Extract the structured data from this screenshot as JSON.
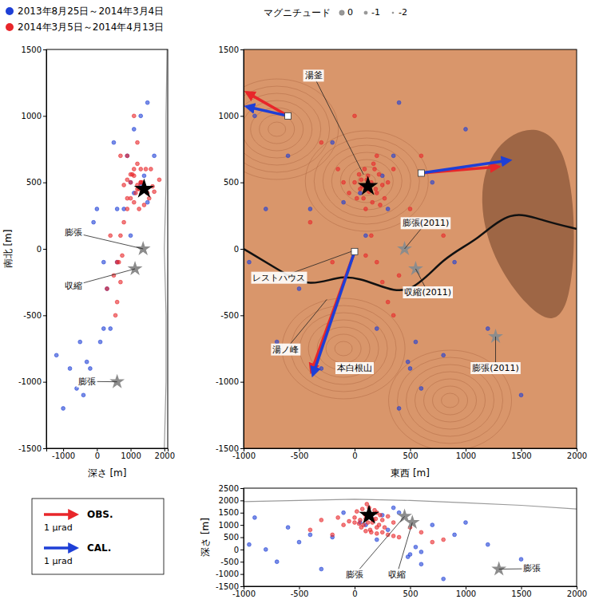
{
  "chart_data": [
    {
      "type": "scatter",
      "legend": "top-left",
      "x_label": "深さ [m]",
      "y_label": "南北 [m]",
      "xlim": [
        -1500,
        2100
      ],
      "xticks": [
        -1000,
        0,
        1000,
        2000
      ],
      "ylim": [
        -1500,
        1500
      ],
      "yticks": [
        -1500,
        -1000,
        -500,
        0,
        500,
        1000,
        1500
      ],
      "series": [
        {
          "name": "2013年8月25日～2014年3月4日",
          "color": "#1e3fd6",
          "marker": "circle",
          "x": [
            1300,
            900,
            600,
            1500,
            1000,
            1300,
            1100,
            1400,
            1500,
            800,
            100,
            -200,
            -600,
            -300,
            600,
            200,
            -500,
            -800,
            400,
            -1000,
            0,
            1100,
            500,
            -100,
            1000,
            300,
            -1200,
            200,
            -400,
            1700
          ],
          "values": [
            1000,
            700,
            300,
            1100,
            500,
            480,
            420,
            550,
            350,
            300,
            -700,
            -900,
            -1050,
            -850,
            -100,
            -600,
            -700,
            -900,
            -600,
            -1200,
            300,
            900,
            800,
            200,
            100,
            -300,
            -800,
            -100,
            -1100,
            700
          ]
        },
        {
          "name": "2014年3月5日～2014年4月13日",
          "color": "#e8262a",
          "marker": "circle",
          "x": [
            1400,
            1300,
            1200,
            1500,
            1100,
            1000,
            1600,
            1300,
            1200,
            1700,
            900,
            1100,
            1000,
            1450,
            1150,
            1350,
            800,
            1550,
            1250,
            1850,
            1000,
            900,
            1650,
            1200,
            1050,
            1400,
            1250,
            1100,
            1300,
            900,
            700,
            650,
            700,
            600,
            750,
            550,
            1200,
            900,
            800,
            700,
            500,
            600,
            300,
            1100,
            400
          ],
          "values": [
            470,
            500,
            450,
            420,
            550,
            380,
            600,
            500,
            480,
            430,
            520,
            350,
            560,
            600,
            420,
            500,
            480,
            380,
            450,
            520,
            500,
            380,
            470,
            640,
            560,
            330,
            300,
            600,
            600,
            700,
            100,
            -100,
            -250,
            -400,
            -50,
            -500,
            800,
            300,
            200,
            700,
            -200,
            -100,
            -300,
            1000,
            100
          ]
        },
        {
          "type": "line",
          "color": "#9a9a9a",
          "x": [
            2080,
            2050,
            2050,
            2000,
            2050,
            2050,
            2000
          ],
          "values": [
            1500,
            1000,
            500,
            0,
            -500,
            -1000,
            -1500
          ]
        },
        {
          "marker": "star",
          "colors": [
            "#000000",
            "#8c8c8c",
            "#8c8c8c",
            "#8c8c8c"
          ],
          "x": [
            1400,
            1370,
            1130,
            600
          ],
          "values": [
            450,
            0,
            -150,
            -1000
          ]
        }
      ],
      "annotations": [
        {
          "text": "膨張",
          "x": -700,
          "y": 120,
          "to": [
            1370,
            0
          ]
        },
        {
          "text": "収縮",
          "x": -700,
          "y": -280,
          "to": [
            1130,
            -150
          ]
        },
        {
          "text": "膨張",
          "x": -300,
          "y": -1000,
          "to": [
            600,
            -1000
          ]
        }
      ]
    },
    {
      "type": "scatter",
      "x_label": "東西 [m]",
      "xlim": [
        -1000,
        2000
      ],
      "xticks": [
        -1000,
        -500,
        0,
        500,
        1000,
        1500,
        2000
      ],
      "ylim": [
        -1500,
        1500
      ],
      "yticks": [
        -1500,
        -1000,
        -500,
        0,
        500,
        1000,
        1500
      ],
      "series": [
        {
          "color": "#1e3fd6",
          "marker": "circle",
          "x": [
            -900,
            -600,
            -400,
            400,
            700,
            150,
            50,
            250,
            -100,
            300,
            550,
            500,
            600,
            480,
            900,
            1200,
            -700,
            -300,
            200,
            400,
            -800,
            1000,
            -200,
            600,
            100,
            -500,
            800,
            -950,
            1500,
            350
          ],
          "values": [
            1000,
            700,
            300,
            1100,
            500,
            480,
            420,
            550,
            350,
            300,
            -700,
            -900,
            -1050,
            -850,
            -100,
            -600,
            -700,
            -900,
            -600,
            -1200,
            300,
            900,
            800,
            200,
            100,
            -300,
            -800,
            -100,
            -1100,
            700
          ]
        },
        {
          "color": "#e8262a",
          "marker": "circle",
          "x": [
            100,
            150,
            50,
            200,
            120,
            80,
            180,
            0,
            250,
            130,
            60,
            160,
            220,
            90,
            -50,
            300,
            140,
            20,
            190,
            110,
            -100,
            270,
            70,
            170,
            40,
            230,
            100,
            350,
            -150,
            200,
            150,
            200,
            250,
            300,
            100,
            350,
            -300,
            500,
            -400,
            600,
            400,
            -200,
            700,
            0,
            800
          ],
          "values": [
            470,
            500,
            450,
            420,
            550,
            380,
            600,
            500,
            480,
            430,
            520,
            350,
            560,
            600,
            420,
            500,
            480,
            380,
            450,
            520,
            500,
            380,
            470,
            640,
            560,
            330,
            300,
            600,
            600,
            700,
            100,
            -100,
            -250,
            -400,
            -50,
            -500,
            800,
            300,
            200,
            700,
            -200,
            -100,
            -300,
            1000,
            100
          ]
        },
        {
          "marker": "star",
          "colors": [
            "#000000",
            "#8c8c8c",
            "#8c8c8c",
            "#8c8c8c"
          ],
          "x": [
            120,
            450,
            550,
            1270
          ],
          "values": [
            470,
            0,
            -150,
            -660
          ]
        }
      ],
      "vectors": [
        {
          "x": -600,
          "y": 1000,
          "obs": [
            -1.28,
            0.73
          ],
          "cal": [
            -1.28,
            0.29
          ]
        },
        {
          "x": 600,
          "y": 570,
          "obs": [
            2.4,
            0.2
          ],
          "cal": [
            2.75,
            0.4
          ]
        },
        {
          "x": 0,
          "y": -20,
          "obs": [
            -1.35,
            -3.75
          ],
          "cal": [
            -1.3,
            -3.85
          ]
        }
      ],
      "annotations": [
        {
          "text": "湯釜",
          "x": -370,
          "y": 1300,
          "to": [
            80,
            560
          ]
        },
        {
          "text": "レストハウス",
          "x": -680,
          "y": -220,
          "to": [
            -30,
            -20
          ]
        },
        {
          "text": "湯ノ峰",
          "x": -620,
          "y": -760,
          "to": [
            -250,
            -380
          ]
        },
        {
          "text": "本白根山",
          "x": 0,
          "y": -900
        },
        {
          "text": "膨張(2011)",
          "x": 640,
          "y": 190,
          "to": [
            450,
            0
          ]
        },
        {
          "text": "収縮(2011)",
          "x": 660,
          "y": -330,
          "to": [
            550,
            -150
          ]
        },
        {
          "text": "膨張(2011)",
          "x": 1270,
          "y": -900,
          "to": [
            1270,
            -660
          ]
        }
      ]
    },
    {
      "type": "scatter",
      "y_label": "深さ [m]",
      "xlim": [
        -1000,
        2000
      ],
      "xticks": [
        -1000,
        -500,
        0,
        500,
        1000,
        1500,
        2000
      ],
      "ylim": [
        -1500,
        2500
      ],
      "yticks": [
        -1500,
        -1000,
        -500,
        0,
        500,
        1000,
        1500,
        2000,
        2500
      ],
      "series": [
        {
          "color": "#1e3fd6",
          "marker": "circle",
          "x": [
            -900,
            -600,
            -400,
            400,
            700,
            150,
            50,
            250,
            -100,
            300,
            550,
            500,
            600,
            480,
            900,
            1200,
            -700,
            -300,
            200,
            400,
            -800,
            1000,
            -200,
            600,
            100,
            -500,
            800,
            -950,
            1500,
            350
          ],
          "values": [
            1300,
            900,
            600,
            1500,
            1000,
            1300,
            1100,
            1400,
            1500,
            800,
            100,
            -200,
            -600,
            -300,
            600,
            200,
            -500,
            -800,
            400,
            -1000,
            0,
            1100,
            500,
            -100,
            1000,
            300,
            -1200,
            200,
            -400,
            1700
          ]
        },
        {
          "color": "#e8262a",
          "marker": "circle",
          "x": [
            100,
            150,
            50,
            200,
            120,
            80,
            180,
            0,
            250,
            130,
            60,
            160,
            220,
            90,
            -50,
            300,
            140,
            20,
            190,
            110,
            -100,
            270,
            70,
            170,
            40,
            230,
            100,
            350,
            -150,
            200,
            150,
            200,
            250,
            300,
            100,
            350,
            -300,
            500,
            -400,
            600,
            400,
            -200,
            700,
            0,
            800
          ],
          "values": [
            1400,
            1300,
            1200,
            1500,
            1100,
            1000,
            1600,
            1300,
            1200,
            1700,
            900,
            1100,
            1000,
            1450,
            1150,
            1350,
            800,
            1550,
            1250,
            1850,
            1000,
            900,
            1650,
            1200,
            1050,
            1400,
            1250,
            1100,
            1300,
            900,
            700,
            650,
            700,
            600,
            750,
            550,
            1200,
            900,
            800,
            700,
            500,
            600,
            300,
            1100,
            400
          ]
        },
        {
          "type": "line",
          "color": "#9a9a9a",
          "x": [
            -1000,
            -500,
            0,
            500,
            1000,
            1500,
            2000
          ],
          "values": [
            1950,
            2000,
            2050,
            2000,
            1900,
            1800,
            1650
          ]
        },
        {
          "marker": "star",
          "colors": [
            "#000000",
            "#8c8c8c",
            "#8c8c8c",
            "#8c8c8c"
          ],
          "x": [
            130,
            450,
            520,
            1300
          ],
          "values": [
            1400,
            1350,
            1100,
            -800
          ]
        }
      ],
      "annotations": [
        {
          "text": "膨張",
          "x": 0,
          "y": -1050,
          "to": [
            450,
            1350
          ]
        },
        {
          "text": "収縮",
          "x": 380,
          "y": -1050,
          "to": [
            520,
            1100
          ]
        },
        {
          "text": "膨張",
          "x": 1600,
          "y": -800,
          "to": [
            1300,
            -800
          ]
        }
      ]
    }
  ],
  "magnitude_legend": {
    "title": "マグニチュード",
    "values": [
      0,
      -1,
      -2
    ]
  },
  "tilt_legend": {
    "items": [
      {
        "name": "OBS.",
        "color": "#e8262a",
        "value": 1,
        "label": "1 μrad"
      },
      {
        "name": "CAL.",
        "color": "#1e3fd6",
        "value": 1,
        "label": "1 μrad"
      }
    ]
  }
}
